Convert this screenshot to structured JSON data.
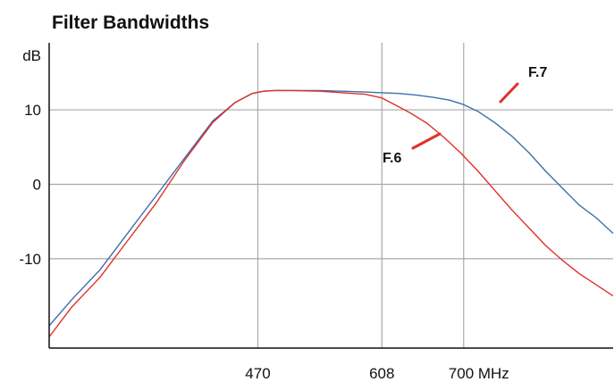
{
  "chart_data": {
    "type": "line",
    "title": "Filter Bandwidths",
    "ylabel": "dB",
    "xlabel": "",
    "grid": true,
    "legend": "none",
    "x_axis": {
      "range": [
        0,
        100
      ],
      "ticks": [
        {
          "value": 37,
          "label": "470"
        },
        {
          "value": 59,
          "label": "608"
        },
        {
          "value": 73.5,
          "label": "700 MHz"
        }
      ]
    },
    "y_axis": {
      "range": [
        -22,
        19
      ],
      "ticks": [
        {
          "value": 10,
          "label": "10"
        },
        {
          "value": 0,
          "label": "0"
        },
        {
          "value": -10,
          "label": "-10"
        }
      ]
    },
    "series": [
      {
        "name": "F.7",
        "color": "#3d6fae",
        "x": [
          0,
          4,
          9,
          14,
          19,
          24,
          29,
          33,
          36,
          38,
          40,
          43,
          48,
          52,
          56,
          59,
          62,
          65,
          68,
          71,
          73.5,
          76,
          79,
          82,
          85,
          88,
          91,
          94,
          97,
          100
        ],
        "y": [
          -19,
          -15.5,
          -11.5,
          -6.5,
          -1.5,
          3.5,
          8.5,
          11,
          12.2,
          12.5,
          12.6,
          12.6,
          12.6,
          12.5,
          12.4,
          12.3,
          12.2,
          12.0,
          11.7,
          11.3,
          10.7,
          9.8,
          8.3,
          6.5,
          4.3,
          1.8,
          -0.5,
          -2.8,
          -4.5,
          -6.6
        ]
      },
      {
        "name": "F.6",
        "color": "#e0302a",
        "x": [
          0,
          4,
          9,
          14,
          19,
          24,
          29,
          33,
          36,
          38,
          40,
          43,
          48,
          52,
          56,
          59,
          61,
          64,
          67,
          70,
          73,
          76,
          79,
          82,
          85,
          88,
          91,
          94,
          97,
          100
        ],
        "y": [
          -20.5,
          -16.5,
          -12.5,
          -7.5,
          -2.5,
          3.2,
          8.3,
          11,
          12.2,
          12.5,
          12.6,
          12.6,
          12.5,
          12.3,
          12.1,
          11.6,
          10.8,
          9.6,
          8.2,
          6.3,
          4.2,
          1.8,
          -0.8,
          -3.4,
          -5.8,
          -8.2,
          -10.2,
          -12,
          -13.5,
          -15
        ]
      }
    ],
    "annotations": [
      {
        "text": "F.7",
        "series": "F.7"
      },
      {
        "text": "F.6",
        "series": "F.6"
      }
    ],
    "colors": {
      "grid": "#a8a8a8",
      "axis": "#111111",
      "leader": "#e0302a"
    }
  }
}
